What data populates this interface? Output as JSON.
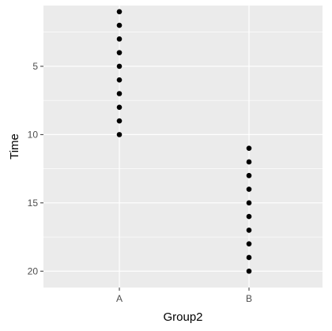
{
  "chart_data": {
    "type": "scatter",
    "title": "",
    "xlabel": "Group2",
    "ylabel": "Time",
    "categories": [
      "A",
      "B"
    ],
    "points": [
      {
        "x": "A",
        "y": 1
      },
      {
        "x": "A",
        "y": 2
      },
      {
        "x": "A",
        "y": 3
      },
      {
        "x": "A",
        "y": 4
      },
      {
        "x": "A",
        "y": 5
      },
      {
        "x": "A",
        "y": 6
      },
      {
        "x": "A",
        "y": 7
      },
      {
        "x": "A",
        "y": 8
      },
      {
        "x": "A",
        "y": 9
      },
      {
        "x": "A",
        "y": 10
      },
      {
        "x": "B",
        "y": 11
      },
      {
        "x": "B",
        "y": 12
      },
      {
        "x": "B",
        "y": 13
      },
      {
        "x": "B",
        "y": 14
      },
      {
        "x": "B",
        "y": 15
      },
      {
        "x": "B",
        "y": 16
      },
      {
        "x": "B",
        "y": 17
      },
      {
        "x": "B",
        "y": 18
      },
      {
        "x": "B",
        "y": 19
      },
      {
        "x": "B",
        "y": 20
      }
    ],
    "y_axis_reversed": true,
    "ylim": [
      0.55,
      21.2
    ],
    "y_ticks": [
      5,
      10,
      15,
      20
    ],
    "grid": true,
    "colors": {
      "panel": "#ebebeb",
      "grid": "#ffffff",
      "point": "#000000"
    }
  }
}
